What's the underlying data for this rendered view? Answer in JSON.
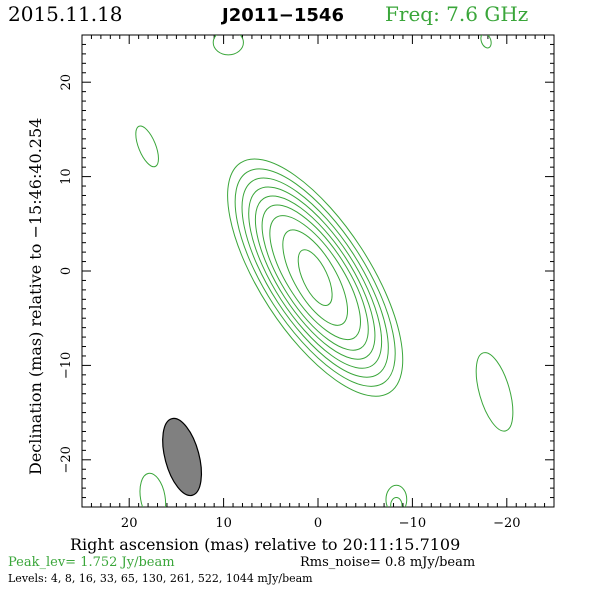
{
  "header": {
    "date": "2015.11.18",
    "source": "J2011−1546",
    "freq": "Freq: 7.6 GHz"
  },
  "footer": {
    "peak": "Peak_lev=  1.752 Jy/beam",
    "rms": "Rms_noise=  0.8 mJy/beam",
    "levels": "Levels:   4,   8,  16,  33,  65, 130, 261, 522, 1044 mJy/beam"
  },
  "colors": {
    "contour": "#3aa63a",
    "beam_fill": "#808080",
    "axis": "#000000"
  },
  "chart_data": {
    "type": "contour",
    "xlabel": "Right ascension (mas) relative to 20:11:15.7109",
    "ylabel": "Declination (mas) relative to −15:46:40.254",
    "xlim": [
      25,
      -25
    ],
    "ylim": [
      -25,
      25
    ],
    "x_ticks": [
      20,
      10,
      0,
      -10,
      -20
    ],
    "x_tick_labels": [
      "20",
      "10",
      "0",
      "−10",
      "−20"
    ],
    "y_ticks": [
      20,
      10,
      0,
      -10,
      -20
    ],
    "y_tick_labels": [
      "20",
      "10",
      "0",
      "−10",
      "−20"
    ],
    "levels_mJy": [
      4,
      8,
      16,
      33,
      65,
      130,
      261,
      522,
      1044
    ],
    "source_contours": [
      {
        "cx": 0.3,
        "cy": -0.7,
        "a": 14.5,
        "b": 5.8,
        "pa_deg": 33
      },
      {
        "cx": 0.3,
        "cy": -0.7,
        "a": 13.3,
        "b": 5.25,
        "pa_deg": 33
      },
      {
        "cx": 0.3,
        "cy": -0.7,
        "a": 12.2,
        "b": 4.75,
        "pa_deg": 33
      },
      {
        "cx": 0.3,
        "cy": -0.7,
        "a": 11.1,
        "b": 4.3,
        "pa_deg": 33
      },
      {
        "cx": 0.3,
        "cy": -0.7,
        "a": 10.0,
        "b": 3.85,
        "pa_deg": 33
      },
      {
        "cx": 0.3,
        "cy": -0.7,
        "a": 8.9,
        "b": 3.4,
        "pa_deg": 33
      },
      {
        "cx": 0.3,
        "cy": -0.7,
        "a": 7.6,
        "b": 2.9,
        "pa_deg": 33
      },
      {
        "cx": 0.3,
        "cy": -0.7,
        "a": 5.7,
        "b": 2.2,
        "pa_deg": 30
      },
      {
        "cx": 0.3,
        "cy": -0.7,
        "a": 3.2,
        "b": 1.3,
        "pa_deg": 25
      }
    ],
    "noise_contours": [
      {
        "cx": 18.1,
        "cy": 13.2,
        "a": 2.3,
        "b": 0.9,
        "pa_deg": 22
      },
      {
        "cx": 9.5,
        "cy": 24.2,
        "a": 1.3,
        "b": 1.6,
        "pa_deg": 0
      },
      {
        "cx": -17.8,
        "cy": 24.4,
        "a": 0.8,
        "b": 0.5,
        "pa_deg": 20
      },
      {
        "cx": -18.7,
        "cy": -12.8,
        "a": 4.3,
        "b": 1.6,
        "pa_deg": 16
      },
      {
        "cx": 17.5,
        "cy": -24.0,
        "a": 2.6,
        "b": 1.3,
        "pa_deg": 10
      },
      {
        "cx": -8.3,
        "cy": -24.2,
        "a": 1.5,
        "b": 1.1,
        "pa_deg": 0
      },
      {
        "cx": -8.3,
        "cy": -24.8,
        "a": 0.8,
        "b": 0.6,
        "pa_deg": 0
      }
    ],
    "beam": {
      "cx": 14.4,
      "cy": -19.7,
      "a": 4.2,
      "b": 1.8,
      "pa_deg": 15
    }
  }
}
